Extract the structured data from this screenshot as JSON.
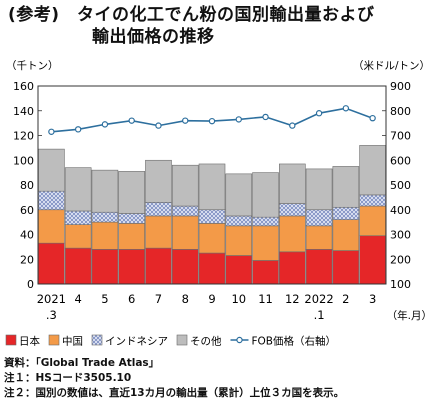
{
  "title_line1": "(参考)　タイの化工でん粉の国別輸出量および",
  "title_line2": "輸出価格の推移",
  "notes": [
    "資料：「Global Trade Atlas」",
    "注１：HSコード3505.10",
    "注２：国別の数値は、直近13カ月の輸出量（累計）上位３カ国を表示。"
  ],
  "chart_data": {
    "type": "bar",
    "stacked": true,
    "title": "",
    "ylabel": "（千トン）",
    "y2label": "（米ドル/トン）",
    "xlabel": "（年.月）",
    "ylim": [
      0,
      160
    ],
    "ytick_step": 20,
    "y2lim": [
      100,
      900
    ],
    "y2tick_step": 100,
    "grid": false,
    "legend_position": "bottom",
    "categories": [
      "2021.3",
      "4",
      "5",
      "6",
      "7",
      "8",
      "9",
      "10",
      "11",
      "12",
      "2022.1",
      "2",
      "3"
    ],
    "category_labels": [
      [
        "2021",
        ".3"
      ],
      [
        "4",
        ""
      ],
      [
        "5",
        ""
      ],
      [
        "6",
        ""
      ],
      [
        "7",
        ""
      ],
      [
        "8",
        ""
      ],
      [
        "9",
        ""
      ],
      [
        "10",
        ""
      ],
      [
        "11",
        ""
      ],
      [
        "12",
        ""
      ],
      [
        "2022",
        ".1"
      ],
      [
        "2",
        ""
      ],
      [
        "3",
        ""
      ]
    ],
    "series": [
      {
        "name": "日本",
        "color": "#e52628",
        "pattern": "solid",
        "values": [
          33,
          29,
          28,
          28,
          29,
          28,
          25,
          23,
          19,
          26,
          28,
          27,
          39
        ]
      },
      {
        "name": "中国",
        "color": "#f39a48",
        "pattern": "solid",
        "values": [
          27,
          19,
          22,
          21,
          26,
          27,
          24,
          24,
          28,
          29,
          19,
          25,
          24
        ]
      },
      {
        "name": "インドネシア",
        "color": "#d6ddf0",
        "pattern": "hatch",
        "values": [
          15,
          11,
          8,
          8,
          11,
          8,
          11,
          8,
          7,
          10,
          13,
          10,
          9
        ]
      },
      {
        "name": "その他",
        "color": "#bdbdbd",
        "pattern": "solid",
        "values": [
          34,
          35,
          34,
          34,
          34,
          33,
          37,
          34,
          36,
          32,
          33,
          33,
          40
        ]
      }
    ],
    "line_series": {
      "name": "FOB価格（右軸）",
      "axis": "right",
      "color": "#2d6f9e",
      "values": [
        715,
        725,
        745,
        760,
        740,
        760,
        758,
        765,
        775,
        740,
        790,
        810,
        770
      ]
    }
  }
}
